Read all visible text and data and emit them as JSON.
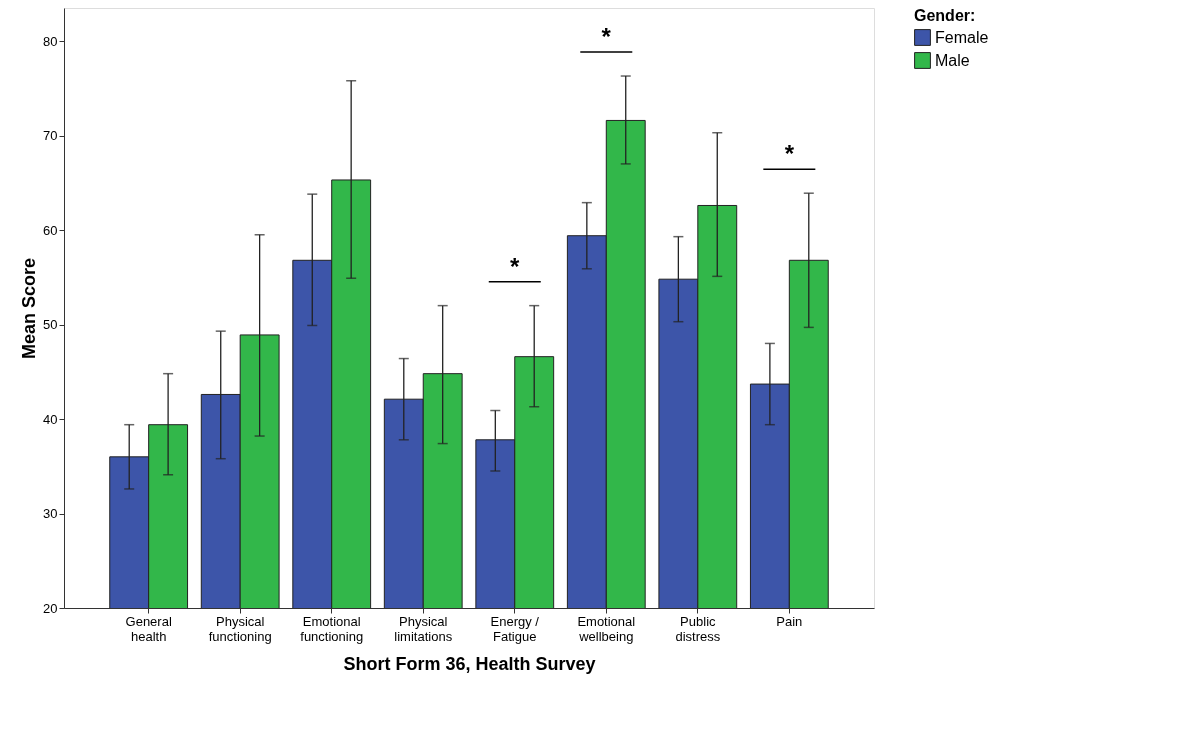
{
  "chart_data": {
    "type": "bar",
    "xlabel": "Short Form 36, Health Survey",
    "ylabel": "Mean Score",
    "legend_title": "Gender:",
    "categories": [
      "General health",
      "Physical functioning",
      "Emotional functioning",
      "Physical limitations",
      "Energy / Fatigue",
      "Emotional wellbeing",
      "Public distress",
      "Pain"
    ],
    "series": [
      {
        "name": "Female",
        "color": "#3d55a9",
        "values": [
          36.0,
          42.6,
          56.8,
          42.1,
          37.8,
          59.4,
          54.8,
          43.7
        ],
        "errors": [
          [
            32.6,
            39.4
          ],
          [
            35.8,
            49.3
          ],
          [
            49.9,
            63.8
          ],
          [
            37.8,
            46.4
          ],
          [
            34.5,
            40.9
          ],
          [
            55.9,
            62.9
          ],
          [
            50.3,
            59.3
          ],
          [
            39.4,
            48.0
          ]
        ]
      },
      {
        "name": "Male",
        "color": "#32b74a",
        "values": [
          39.4,
          48.9,
          65.3,
          44.8,
          46.6,
          71.6,
          62.6,
          56.8
        ],
        "errors": [
          [
            34.1,
            44.8
          ],
          [
            38.2,
            59.5
          ],
          [
            54.9,
            75.8
          ],
          [
            37.4,
            52.0
          ],
          [
            41.3,
            52.0
          ],
          [
            67.0,
            76.3
          ],
          [
            55.1,
            70.3
          ],
          [
            49.7,
            63.9
          ]
        ]
      }
    ],
    "ylim": [
      20,
      83.5
    ],
    "yticks": [
      20,
      30,
      40,
      50,
      60,
      70,
      80
    ],
    "grid": false,
    "legend": "top right",
    "annotations": [
      "*",
      "*",
      "*"
    ]
  }
}
